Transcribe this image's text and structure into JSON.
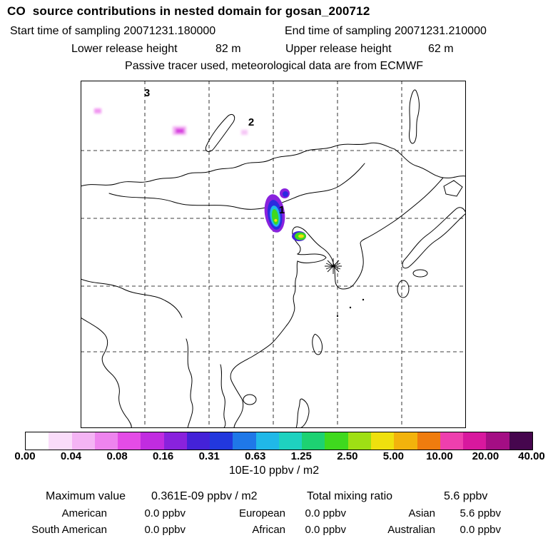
{
  "header": {
    "title": "CO  source contributions in nested domain for gosan_200712",
    "start_time": "Start time of sampling 20071231.180000",
    "end_time": "End time of sampling 20071231.210000",
    "lower_release_label": "Lower release height",
    "lower_release_value": "82 m",
    "upper_release_label": "Upper release height",
    "upper_release_value": "62 m",
    "tracer_note": "Passive tracer used, meteorological data are from ECMWF"
  },
  "map": {
    "labels": [
      {
        "text": "1"
      },
      {
        "text": "2"
      },
      {
        "text": "3"
      }
    ]
  },
  "colorbar": {
    "colors": [
      "#ffffff",
      "#fadcfa",
      "#f4b4f4",
      "#ee84ee",
      "#e44ce6",
      "#c12ce0",
      "#8922dd",
      "#4422d8",
      "#2238dd",
      "#1f78e8",
      "#20b8e8",
      "#1ed2c0",
      "#1dd272",
      "#3fd91e",
      "#9fdf14",
      "#efe00e",
      "#f2b30c",
      "#ef7c0e",
      "#ee3fae",
      "#d8189e",
      "#a40e84",
      "#46064e"
    ],
    "ticks": [
      "0.00",
      "0.04",
      "0.08",
      "0.16",
      "0.31",
      "0.63",
      "1.25",
      "2.50",
      "5.00",
      "10.00",
      "20.00",
      "40.00"
    ],
    "units": "10E-10 ppbv / m2"
  },
  "stats": {
    "max_label": "Maximum value",
    "max_value": "0.361E-09 ppbv / m2",
    "total_label": "Total mixing ratio",
    "total_value": "5.6 ppbv",
    "contributions": [
      {
        "region": "American",
        "value": "0.0 ppbv"
      },
      {
        "region": "European",
        "value": "0.0 ppbv"
      },
      {
        "region": "Asian",
        "value": "5.6 ppbv"
      },
      {
        "region": "South American",
        "value": "0.0 ppbv"
      },
      {
        "region": "African",
        "value": "0.0 ppbv"
      },
      {
        "region": "Australian",
        "value": "0.0 ppbv"
      }
    ]
  },
  "chart_data": {
    "type": "heatmap",
    "title": "CO  source contributions in nested domain for gosan_200712",
    "subtitle": "Passive tracer used, meteorological data are from ECMWF",
    "sampling": {
      "start": "20071231.180000",
      "end": "20071231.210000"
    },
    "release_heights_m": {
      "lower": 82,
      "upper": 62
    },
    "colorbar_tick_values": [
      0.0,
      0.04,
      0.08,
      0.16,
      0.31,
      0.63,
      1.25,
      2.5,
      5.0,
      10.0,
      20.0,
      40.0
    ],
    "colorbar_units": "10E-10 ppbv / m2",
    "max_value": "0.361E-09 ppbv / m2",
    "total_mixing_ratio_ppbv": 5.6,
    "region_contributions_ppbv": {
      "American": 0.0,
      "European": 0.0,
      "Asian": 5.6,
      "South American": 0.0,
      "African": 0.0,
      "Australian": 0.0
    },
    "markers": [
      {
        "label": "1",
        "feature": "main plume over northeast China: green core (~1.25-2.5) with yellow speck, cyan/blue ring, violet rim; secondary green-yellow spot near Bohai coast"
      },
      {
        "label": "2",
        "feature": "very faint pale-pink patch in northern domain"
      },
      {
        "label": "3",
        "feature": "label at upper-left gridline; small magenta patches to its west, brighter one south of Lake Baikal"
      }
    ],
    "station_marker": "asterisk at Gosan receptor near the Yellow Sea"
  }
}
